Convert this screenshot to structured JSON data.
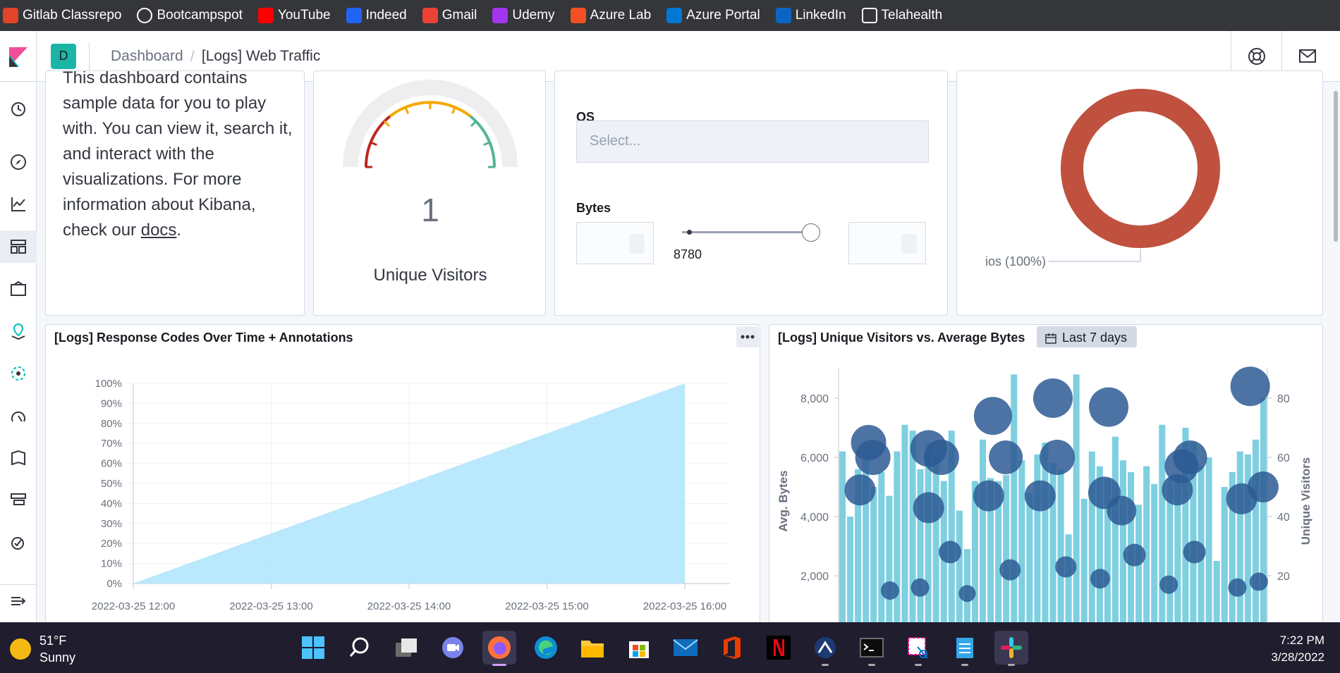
{
  "bookmarks": [
    {
      "label": "Gitlab Classrepo",
      "icon": "gitlab-icon",
      "color": "#e24329"
    },
    {
      "label": "Bootcampspot",
      "icon": "globe-icon",
      "color": "#ffffff"
    },
    {
      "label": "YouTube",
      "icon": "youtube-icon",
      "color": "#ff0000"
    },
    {
      "label": "Indeed",
      "icon": "indeed-icon",
      "color": "#2164f3"
    },
    {
      "label": "Gmail",
      "icon": "gmail-icon",
      "color": "#ea4335"
    },
    {
      "label": "Udemy",
      "icon": "udemy-icon",
      "color": "#a435f0"
    },
    {
      "label": "Azure Lab",
      "icon": "microsoft-icon",
      "color": "#f25022"
    },
    {
      "label": "Azure Portal",
      "icon": "azure-icon",
      "color": "#0078d4"
    },
    {
      "label": "LinkedIn",
      "icon": "linkedin-icon",
      "color": "#0a66c2"
    },
    {
      "label": "Telahealth",
      "icon": "telahealth-icon",
      "color": "#ffffff"
    }
  ],
  "header": {
    "space_initial": "D",
    "breadcrumb_parent": "Dashboard",
    "breadcrumb_sep": "/",
    "breadcrumb_current": "[Logs] Web Traffic"
  },
  "markdown_panel": {
    "text_before": "This dashboard contains sample data for you to play with. You can view it, search it, and interact with the visualizations. For more information about Kibana, check our ",
    "link": "docs",
    "text_after": "."
  },
  "gauge_panel": {
    "value": "1",
    "label": "Unique Visitors"
  },
  "controls_panel": {
    "os_label": "OS",
    "os_placeholder": "Select...",
    "bytes_label": "Bytes",
    "slider_value": "8780"
  },
  "pie_panel": {
    "legend": "ios (100%)",
    "color": "#c0513f"
  },
  "response_codes_panel": {
    "title": "[Logs] Response Codes Over Time + Annotations"
  },
  "visitors_bytes_panel": {
    "title": "[Logs] Unique Visitors vs. Average Bytes",
    "date_badge": "Last 7 days"
  },
  "chart_data": [
    {
      "type": "area",
      "title": "[Logs] Response Codes Over Time + Annotations",
      "x": [
        "2022-03-25 12:00",
        "2022-03-25 13:00",
        "2022-03-25 14:00",
        "2022-03-25 15:00",
        "2022-03-25 16:00"
      ],
      "y_ticks": [
        "0%",
        "10%",
        "20%",
        "30%",
        "40%",
        "50%",
        "60%",
        "70%",
        "80%",
        "90%",
        "100%"
      ],
      "series": [
        {
          "values": [
            0,
            25,
            50,
            75,
            100
          ]
        }
      ],
      "ylim": [
        0,
        100
      ],
      "color": "#b3e5fc"
    },
    {
      "type": "bar",
      "title": "[Logs] Unique Visitors vs. Average Bytes",
      "ylabel": "Avg. Bytes",
      "ylabel_right": "Unique Visitors",
      "y_ticks": [
        "2,000",
        "4,000",
        "6,000",
        "8,000"
      ],
      "y_ticks_right": [
        "20",
        "40",
        "60",
        "80"
      ],
      "ylim": [
        0,
        9000
      ],
      "ylim_right": [
        0,
        90
      ],
      "bar_color": "#7ecfe0",
      "bubble_color": "#2d5b93",
      "bars": [
        6200,
        4000,
        5600,
        5900,
        5000,
        5500,
        4700,
        6200,
        7100,
        6900,
        5600,
        6500,
        6100,
        5200,
        6900,
        4200,
        2900,
        5200,
        6600,
        5300,
        5200,
        5400,
        8800,
        5900,
        4800,
        6100,
        6500,
        5800,
        5600,
        3400,
        8800,
        4600,
        6200,
        5700,
        5300,
        6700,
        5900,
        5500,
        4400,
        5700,
        5100,
        7100,
        5300,
        5400,
        7000,
        6500,
        5700,
        6000,
        2500,
        5000,
        5500,
        6200,
        6100,
        6600,
        8000
      ],
      "bubbles": [
        {
          "x": 0.05,
          "y": 49,
          "r": 22
        },
        {
          "x": 0.07,
          "y": 65,
          "r": 25
        },
        {
          "x": 0.08,
          "y": 60,
          "r": 25
        },
        {
          "x": 0.12,
          "y": 15,
          "r": 13
        },
        {
          "x": 0.19,
          "y": 16,
          "r": 13
        },
        {
          "x": 0.21,
          "y": 43,
          "r": 22
        },
        {
          "x": 0.21,
          "y": 63,
          "r": 26
        },
        {
          "x": 0.24,
          "y": 60,
          "r": 25
        },
        {
          "x": 0.26,
          "y": 28,
          "r": 16
        },
        {
          "x": 0.3,
          "y": 14,
          "r": 12
        },
        {
          "x": 0.35,
          "y": 47,
          "r": 22
        },
        {
          "x": 0.36,
          "y": 74,
          "r": 27
        },
        {
          "x": 0.39,
          "y": 60,
          "r": 24
        },
        {
          "x": 0.4,
          "y": 22,
          "r": 15
        },
        {
          "x": 0.47,
          "y": 47,
          "r": 22
        },
        {
          "x": 0.5,
          "y": 80,
          "r": 28
        },
        {
          "x": 0.51,
          "y": 60,
          "r": 25
        },
        {
          "x": 0.53,
          "y": 23,
          "r": 15
        },
        {
          "x": 0.61,
          "y": 19,
          "r": 14
        },
        {
          "x": 0.63,
          "y": 77,
          "r": 28
        },
        {
          "x": 0.62,
          "y": 48,
          "r": 23
        },
        {
          "x": 0.66,
          "y": 42,
          "r": 21
        },
        {
          "x": 0.69,
          "y": 27,
          "r": 16
        },
        {
          "x": 0.77,
          "y": 17,
          "r": 13
        },
        {
          "x": 0.79,
          "y": 49,
          "r": 22
        },
        {
          "x": 0.8,
          "y": 57,
          "r": 24
        },
        {
          "x": 0.82,
          "y": 60,
          "r": 24
        },
        {
          "x": 0.83,
          "y": 28,
          "r": 16
        },
        {
          "x": 0.93,
          "y": 16,
          "r": 13
        },
        {
          "x": 0.94,
          "y": 46,
          "r": 22
        },
        {
          "x": 0.96,
          "y": 84,
          "r": 28
        },
        {
          "x": 0.99,
          "y": 50,
          "r": 22
        },
        {
          "x": 0.98,
          "y": 18,
          "r": 13
        }
      ]
    }
  ],
  "taskbar": {
    "temperature": "51°F",
    "condition": "Sunny",
    "time": "7:22 PM",
    "date": "3/28/2022"
  }
}
